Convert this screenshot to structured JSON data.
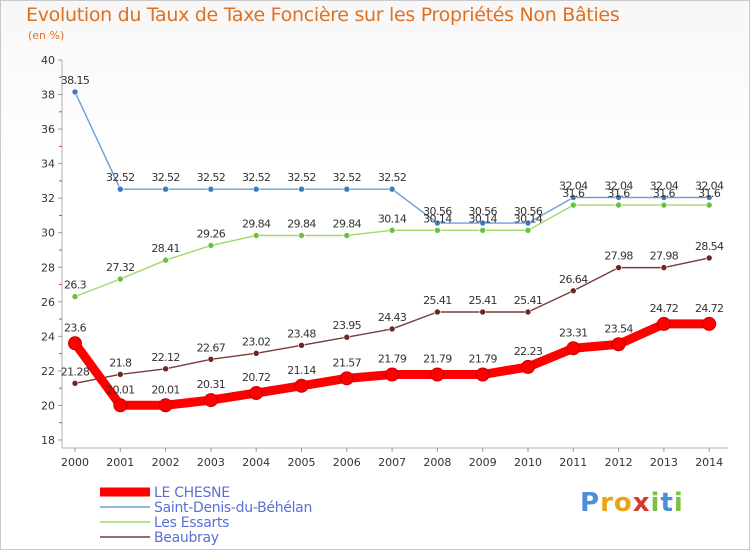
{
  "title": "Evolution du Taux de Taxe Foncière sur les Propriétés Non Bâties",
  "unit_label": "(en %)",
  "logo": {
    "text": "Proxiti",
    "letters": [
      "P",
      "r",
      "o",
      "x",
      "i",
      "t",
      "i"
    ],
    "colors": [
      "#4a90d9",
      "#e8a317",
      "#e8a317",
      "#d83a2a",
      "#7cc142",
      "#4a90d9",
      "#7cc142"
    ]
  },
  "chart_data": {
    "type": "line",
    "title": "Evolution du Taux de Taxe Foncière sur les Propriétés Non Bâties",
    "ylabel": "(en %)",
    "xlabel": "",
    "ylim": [
      18,
      40
    ],
    "yticks": [
      18,
      20,
      22,
      24,
      26,
      28,
      30,
      32,
      34,
      36,
      38,
      40
    ],
    "grid": false,
    "legend_position": "bottom-left",
    "x": [
      "2000",
      "2001",
      "2002",
      "2003",
      "2004",
      "2005",
      "2006",
      "2007",
      "2008",
      "2009",
      "2010",
      "2011",
      "2012",
      "2013",
      "2014"
    ],
    "series": [
      {
        "name": "LE CHESNE",
        "color": "#ff0000",
        "markerColor": "#ff0000",
        "labelColor": "#333333",
        "bold": true,
        "values": [
          23.6,
          20.01,
          20.01,
          20.31,
          20.72,
          21.14,
          21.57,
          21.79,
          21.79,
          21.79,
          22.23,
          23.31,
          23.54,
          24.72,
          24.72
        ],
        "labels": [
          "23.6",
          "20.01",
          "20.01",
          "20.31",
          "20.72",
          "21.14",
          "21.57",
          "21.79",
          "21.79",
          "21.79",
          "22.23",
          "23.31",
          "23.54",
          "24.72",
          "24.72"
        ]
      },
      {
        "name": "Saint-Denis-du-Béhélan",
        "color": "#6aa0d8",
        "markerColor": "#3d7cc4",
        "labelColor": "#333333",
        "bold": false,
        "values": [
          38.15,
          32.52,
          32.52,
          32.52,
          32.52,
          32.52,
          32.52,
          32.52,
          30.56,
          30.56,
          30.56,
          32.04,
          32.04,
          32.04,
          32.04
        ],
        "labels": [
          "38.15",
          "32.52",
          "32.52",
          "32.52",
          "32.52",
          "32.52",
          "32.52",
          "32.52",
          "30.56",
          "30.56",
          "30.56",
          "32.04",
          "32.04",
          "32.04",
          "32.04"
        ]
      },
      {
        "name": "Les Essarts",
        "color": "#9fd86a",
        "markerColor": "#6cc040",
        "labelColor": "#333333",
        "bold": false,
        "values": [
          26.3,
          27.32,
          28.41,
          29.26,
          29.84,
          29.84,
          29.84,
          30.14,
          30.14,
          30.14,
          30.14,
          31.6,
          31.6,
          31.6,
          31.6
        ],
        "labels": [
          "26.3",
          "27.32",
          "28.41",
          "29.26",
          "29.84",
          "29.84",
          "29.84",
          "30.14",
          "30.14",
          "30.14",
          "30.14",
          "31.6",
          "31.6",
          "31.6",
          "31.6"
        ]
      },
      {
        "name": "Beaubray",
        "color": "#7a3a3a",
        "markerColor": "#6b2626",
        "labelColor": "#333333",
        "bold": false,
        "values": [
          21.28,
          21.8,
          22.12,
          22.67,
          23.02,
          23.48,
          23.95,
          24.43,
          25.41,
          25.41,
          25.41,
          26.64,
          27.98,
          27.98,
          28.54
        ],
        "labels": [
          "21.28",
          "21.8",
          "22.12",
          "22.67",
          "23.02",
          "23.48",
          "23.95",
          "24.43",
          "25.41",
          "25.41",
          "25.41",
          "26.64",
          "27.98",
          "27.98",
          "28.54"
        ]
      }
    ]
  }
}
